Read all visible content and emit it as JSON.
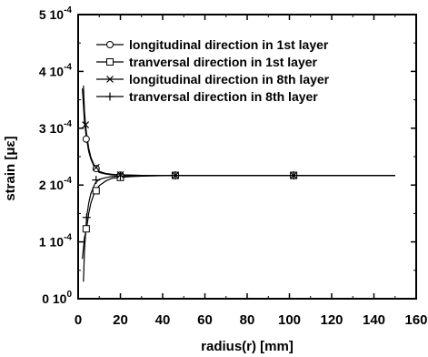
{
  "chart_data": {
    "type": "line",
    "xlabel": "radius(r) [mm]",
    "ylabel": "strain [με]",
    "xlim": [
      0,
      160
    ],
    "ylim": [
      0,
      0.0005
    ],
    "x_ticks": [
      0,
      20,
      40,
      60,
      80,
      100,
      120,
      140,
      160
    ],
    "x_tick_labels": [
      "0",
      "20",
      "40",
      "60",
      "80",
      "100",
      "120",
      "140",
      "160"
    ],
    "y_ticks": [
      0,
      0.0001,
      0.0002,
      0.0003,
      0.0004,
      0.0005
    ],
    "y_tick_labels": [
      {
        "base": "0 10",
        "exp": "0"
      },
      {
        "base": "1 10",
        "exp": "-4"
      },
      {
        "base": "2 10",
        "exp": "-4"
      },
      {
        "base": "3 10",
        "exp": "-4"
      },
      {
        "base": "4 10",
        "exp": "-4"
      },
      {
        "base": "5 10",
        "exp": "-4"
      }
    ],
    "grid": false,
    "legend_position": "top-right",
    "series": [
      {
        "name": "longitudinal direction in 1st layer",
        "marker": "circle",
        "x": [
          2,
          3,
          4,
          5,
          6,
          8,
          10,
          13,
          16,
          20,
          25,
          30,
          40,
          46,
          60,
          80,
          102,
          120,
          150
        ],
        "y": [
          0.00037,
          0.00031,
          0.000281,
          0.000259,
          0.000246,
          0.000229,
          0.000222,
          0.0002195,
          0.000218,
          0.0002175,
          0.0002172,
          0.000217,
          0.000217,
          0.000217,
          0.000217,
          0.000217,
          0.000217,
          0.000217,
          0.000217
        ],
        "marker_x": [
          3.8,
          8.5,
          20,
          46,
          102
        ],
        "marker_y": [
          0.000281,
          0.000229,
          0.0002175,
          0.000217,
          0.000217
        ]
      },
      {
        "name": "tranversal direction in 1st layer",
        "marker": "square",
        "x": [
          2,
          3,
          4,
          5,
          6,
          8,
          10,
          13,
          16,
          20,
          25,
          30,
          40,
          46,
          60,
          80,
          102,
          120,
          150
        ],
        "y": [
          7e-05,
          0.000108,
          0.000123,
          0.00015,
          0.000168,
          0.00019,
          0.000199,
          0.000207,
          0.000212,
          0.0002135,
          0.000215,
          0.0002158,
          0.0002165,
          0.000217,
          0.000217,
          0.000217,
          0.000217,
          0.000217,
          0.000217
        ],
        "marker_x": [
          3.8,
          8.5,
          20,
          46,
          102
        ],
        "marker_y": [
          0.000123,
          0.00019,
          0.0002135,
          0.000217,
          0.000217
        ]
      },
      {
        "name": "longitudinal direction in 8th layer",
        "marker": "cross",
        "x": [
          2.5,
          3,
          3.5,
          4,
          5,
          6,
          8,
          10,
          13,
          16,
          20,
          25,
          30,
          40,
          46,
          60,
          80,
          102,
          120,
          150
        ],
        "y": [
          0.000375,
          0.00033,
          0.000306,
          0.00029,
          0.000265,
          0.000249,
          0.000231,
          0.000224,
          0.0002205,
          0.000219,
          0.000218,
          0.0002175,
          0.000217,
          0.000217,
          0.000217,
          0.000217,
          0.000217,
          0.000217,
          0.000217,
          0.000217
        ],
        "marker_x": [
          3.5,
          8.5,
          20,
          46,
          102
        ],
        "marker_y": [
          0.000306,
          0.000231,
          0.000218,
          0.000217,
          0.000217
        ]
      },
      {
        "name": "tranversal direction in 8th layer",
        "marker": "plus",
        "x": [
          2.5,
          3,
          4,
          5,
          6,
          8,
          10,
          13,
          16,
          20,
          25,
          30,
          40,
          46,
          60,
          80,
          102,
          120,
          150
        ],
        "y": [
          3e-05,
          8.5e-05,
          0.000143,
          0.000168,
          0.000185,
          0.000203,
          0.00021,
          0.000213,
          0.000215,
          0.000216,
          0.0002165,
          0.000217,
          0.000217,
          0.000217,
          0.000217,
          0.000217,
          0.000217,
          0.000217,
          0.000217
        ],
        "marker_x": [
          4,
          8.5,
          20,
          46,
          102
        ],
        "marker_y": [
          0.000143,
          0.000209,
          0.000216,
          0.000217,
          0.000217
        ]
      }
    ]
  }
}
